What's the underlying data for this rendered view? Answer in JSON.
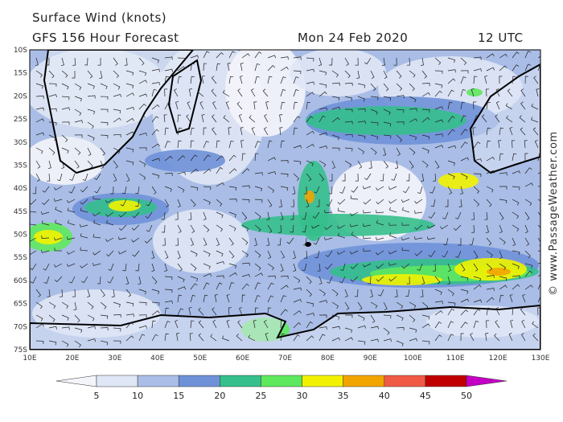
{
  "header": {
    "title": "Surface Wind (knots)",
    "subtitle": "GFS 156 Hour Forecast",
    "date": "Mon 24 Feb 2020",
    "time": "12 UTC"
  },
  "map": {
    "lat_labels": [
      "10S",
      "15S",
      "20S",
      "25S",
      "30S",
      "35S",
      "40S",
      "45S",
      "50S",
      "55S",
      "60S",
      "65S",
      "70S",
      "75S"
    ],
    "lon_labels": [
      "10E",
      "20E",
      "30E",
      "40E",
      "50E",
      "60E",
      "70E",
      "80E",
      "90E",
      "100E",
      "110E",
      "120E",
      "130E"
    ]
  },
  "legend": {
    "labels": [
      5,
      10,
      15,
      20,
      25,
      30,
      35,
      40,
      45,
      50
    ],
    "colors": [
      "#f4f4fb",
      "#dfe6f5",
      "#a9bde6",
      "#6f91d8",
      "#35bf8c",
      "#5ee85e",
      "#f2f200",
      "#f2a400",
      "#f05a45",
      "#c00000",
      "#c400c4"
    ]
  },
  "credit": "© www.PassageWeather.com"
}
